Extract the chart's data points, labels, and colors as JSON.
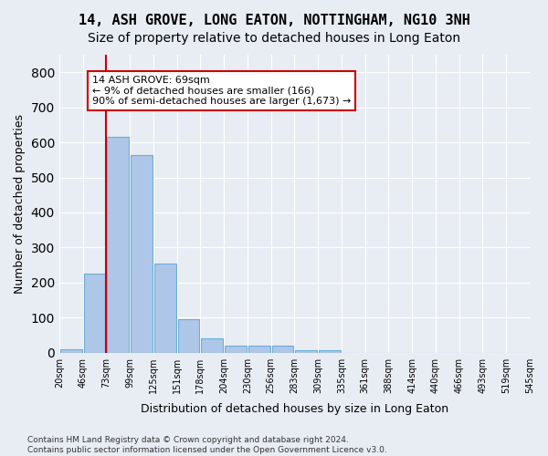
{
  "title": "14, ASH GROVE, LONG EATON, NOTTINGHAM, NG10 3NH",
  "subtitle": "Size of property relative to detached houses in Long Eaton",
  "xlabel": "Distribution of detached houses by size in Long Eaton",
  "ylabel": "Number of detached properties",
  "bar_values": [
    10,
    225,
    615,
    565,
    255,
    95,
    42,
    20,
    20,
    20,
    8,
    8,
    0,
    0,
    0,
    0,
    0,
    0,
    0,
    0
  ],
  "bin_labels": [
    "20sqm",
    "46sqm",
    "73sqm",
    "99sqm",
    "125sqm",
    "151sqm",
    "178sqm",
    "204sqm",
    "230sqm",
    "256sqm",
    "283sqm",
    "309sqm",
    "335sqm",
    "361sqm",
    "388sqm",
    "414sqm",
    "440sqm",
    "466sqm",
    "493sqm",
    "519sqm",
    "545sqm"
  ],
  "bar_color": "#aec6e8",
  "bar_edgecolor": "#6baed6",
  "bg_color": "#e8edf4",
  "grid_color": "#ffffff",
  "vline_x": 1.5,
  "vline_color": "#cc0000",
  "annotation_text": "14 ASH GROVE: 69sqm\n← 9% of detached houses are smaller (166)\n90% of semi-detached houses are larger (1,673) →",
  "annotation_box_color": "#ffffff",
  "annotation_box_edgecolor": "#cc0000",
  "ylim": [
    0,
    850
  ],
  "yticks": [
    0,
    100,
    200,
    300,
    400,
    500,
    600,
    700,
    800
  ],
  "footnote": "Contains HM Land Registry data © Crown copyright and database right 2024.\nContains public sector information licensed under the Open Government Licence v3.0.",
  "title_fontsize": 11,
  "subtitle_fontsize": 10,
  "xlabel_fontsize": 9,
  "ylabel_fontsize": 9
}
